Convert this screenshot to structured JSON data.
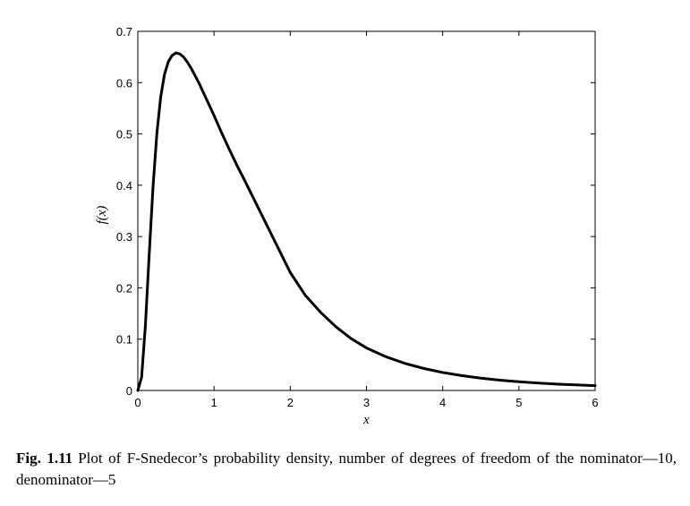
{
  "chart_data": {
    "type": "line",
    "xlabel": "x",
    "ylabel": "f(x)",
    "xlim": [
      0,
      6
    ],
    "ylim": [
      0,
      0.7
    ],
    "xticks": [
      0,
      1,
      2,
      3,
      4,
      5,
      6
    ],
    "yticks": [
      0,
      0.1,
      0.2,
      0.3,
      0.4,
      0.5,
      0.6,
      0.7
    ],
    "xtick_labels": [
      "0",
      "1",
      "2",
      "3",
      "4",
      "5",
      "6"
    ],
    "ytick_labels": [
      "0",
      "0.1",
      "0.2",
      "0.3",
      "0.4",
      "0.5",
      "0.6",
      "0.7"
    ],
    "grid": false,
    "line_color": "#000000",
    "series": [
      {
        "x": [
          0,
          0.05,
          0.1,
          0.15,
          0.2,
          0.25,
          0.3,
          0.35,
          0.4,
          0.45,
          0.5,
          0.55,
          0.6,
          0.65,
          0.7,
          0.75,
          0.8,
          0.85,
          0.9,
          0.95,
          1.0,
          1.1,
          1.2,
          1.3,
          1.4,
          1.5,
          1.6,
          1.7,
          1.8,
          1.9,
          2.0,
          2.2,
          2.4,
          2.6,
          2.8,
          3.0,
          3.25,
          3.5,
          3.75,
          4.0,
          4.25,
          4.5,
          4.75,
          5.0,
          5.25,
          5.5,
          5.75,
          6.0
        ],
        "y": [
          0,
          0.026,
          0.128,
          0.267,
          0.398,
          0.501,
          0.572,
          0.616,
          0.641,
          0.653,
          0.658,
          0.656,
          0.65,
          0.64,
          0.628,
          0.614,
          0.6,
          0.584,
          0.568,
          0.552,
          0.536,
          0.502,
          0.47,
          0.439,
          0.41,
          0.38,
          0.35,
          0.32,
          0.29,
          0.26,
          0.23,
          0.185,
          0.152,
          0.124,
          0.101,
          0.083,
          0.066,
          0.053,
          0.043,
          0.035,
          0.029,
          0.024,
          0.02,
          0.017,
          0.0145,
          0.0125,
          0.0108,
          0.0094
        ]
      }
    ]
  },
  "caption": {
    "label": "Fig. 1.11",
    "text": "Plot of F-Snedecor’s probability density, number of degrees of freedom of the nominator—10, denominator—5"
  }
}
